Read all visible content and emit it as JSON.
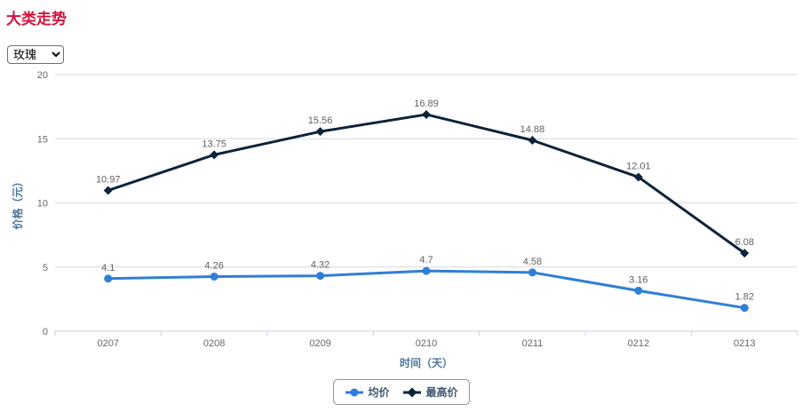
{
  "page": {
    "title": "大类走势"
  },
  "colors": {
    "page_title": "#d0143c",
    "axis_title": "#4d759e",
    "tick_label": "#666666",
    "data_label": "#606060",
    "legend_text": "#3e576f",
    "gridline": "#d8d8d8",
    "axis_line": "#c0d0e0"
  },
  "category_select": {
    "value": "玫瑰"
  },
  "chart_data": {
    "type": "line",
    "categories": [
      "0207",
      "0208",
      "0209",
      "0210",
      "0211",
      "0212",
      "0213"
    ],
    "series": [
      {
        "name": "均价",
        "color": "#2f7ed8",
        "marker": "circle",
        "values": [
          4.1,
          4.26,
          4.32,
          4.7,
          4.58,
          3.16,
          1.82
        ]
      },
      {
        "name": "最高价",
        "color": "#0d233a",
        "marker": "diamond",
        "values": [
          10.97,
          13.75,
          15.56,
          16.89,
          14.88,
          12.01,
          6.08
        ]
      }
    ],
    "title": "",
    "xlabel": "时间（天）",
    "ylabel": "价格（元）",
    "ylim": [
      0,
      20
    ],
    "ytick_interval": 5,
    "grid": true,
    "data_labels": true,
    "legend_position": "bottom-center"
  }
}
